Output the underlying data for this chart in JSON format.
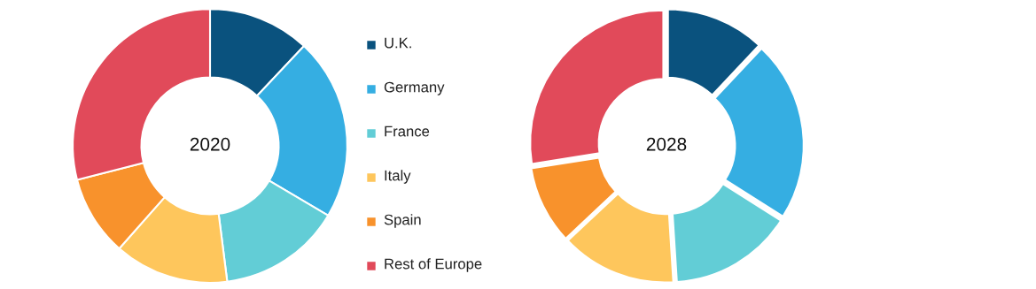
{
  "chart_data": [
    {
      "type": "donut",
      "title": "2020",
      "categories": [
        "U.K.",
        "Germany",
        "France",
        "Italy",
        "Spain",
        "Rest of Europe"
      ],
      "values": [
        12,
        21.5,
        14.5,
        13.5,
        9.5,
        29
      ],
      "colors": [
        "#0a527e",
        "#35aee2",
        "#62cdd6",
        "#fec65c",
        "#f8922c",
        "#e14a5a"
      ],
      "legend": "right"
    },
    {
      "type": "donut",
      "title": "2028",
      "categories": [
        null,
        null,
        null,
        null,
        null,
        null
      ],
      "values": [
        12,
        22,
        15,
        14,
        9.5,
        27.5
      ],
      "colors": [
        "#0a527e",
        "#35aee2",
        "#62cdd6",
        "#fec65c",
        "#f8922c",
        "#e14a5a"
      ]
    }
  ]
}
